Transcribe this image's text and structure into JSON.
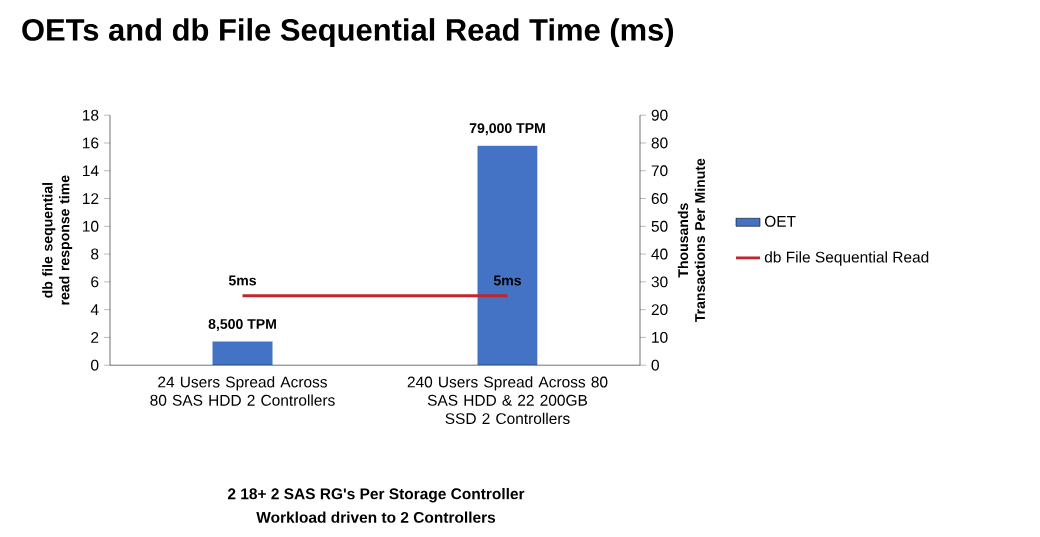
{
  "chart_data": {
    "type": "bar",
    "title": "OETs and db File Sequential Read Time (ms)",
    "ylabel": "db file sequential read response time",
    "y2label": "Thousands Transactions Per Minute",
    "categories": [
      "24 Users Spread Across 80 SAS HDD 2 Controllers",
      "240 Users Spread Across 80 SAS HDD & 22 200GB SSD 2 Controllers"
    ],
    "series": [
      {
        "name": "OET",
        "axis": "y2",
        "color": "#4472c4",
        "values": [
          8.5,
          79
        ]
      },
      {
        "name": "db File Sequential Read",
        "type": "line",
        "axis": "y",
        "color": "#c0262d",
        "values": [
          5,
          5
        ],
        "value_labels": [
          "5ms",
          "5ms"
        ]
      }
    ],
    "ylim": [
      0,
      18
    ],
    "yticks": [
      0,
      2,
      4,
      6,
      8,
      10,
      12,
      14,
      16,
      18
    ],
    "y2lim": [
      0,
      90
    ],
    "y2ticks": [
      0,
      10,
      20,
      30,
      40,
      50,
      60,
      70,
      80,
      90
    ],
    "legend": "right",
    "grid": false,
    "annotations": [
      "2 18+ 2 SAS RG's Per Storage Controller",
      "Workload driven to 2 Controllers",
      "8,500 TPM",
      "79,000 TPM"
    ]
  }
}
